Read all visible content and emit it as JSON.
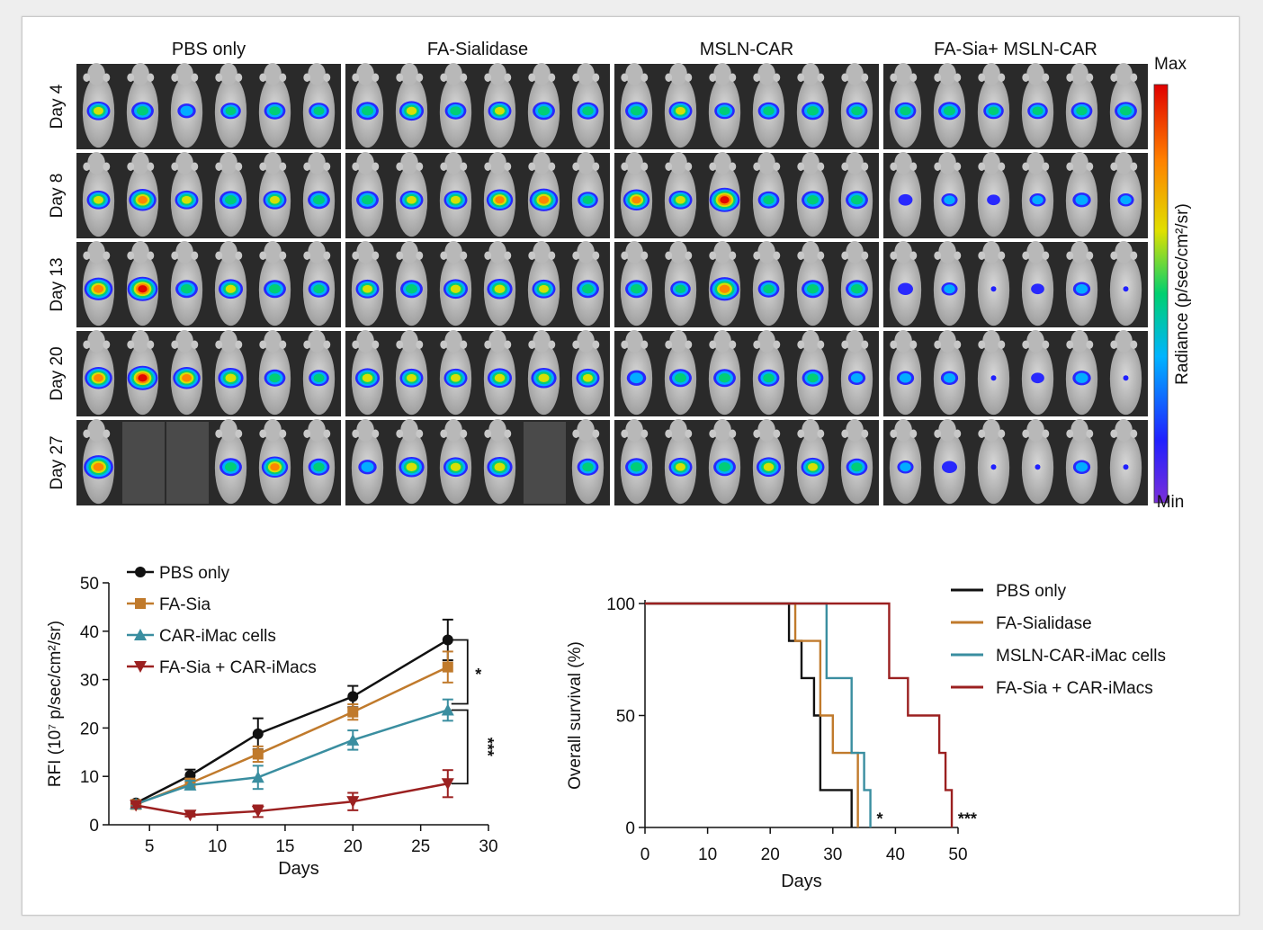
{
  "figure": {
    "imaging": {
      "groups": [
        "PBS only",
        "FA-Sialidase",
        "MSLN-CAR",
        "FA-Sia+ MSLN-CAR"
      ],
      "days": [
        "Day 4",
        "Day 8",
        "Day 13",
        "Day 20",
        "Day 27"
      ],
      "mice_per_panel": 6,
      "intensity": [
        [
          [
            0.6,
            0.55,
            0.35,
            0.45,
            0.5,
            0.45
          ],
          [
            0.55,
            0.65,
            0.5,
            0.6,
            0.55,
            0.5
          ],
          [
            0.55,
            0.6,
            0.45,
            0.5,
            0.55,
            0.5
          ],
          [
            0.5,
            0.55,
            0.45,
            0.45,
            0.5,
            0.55
          ]
        ],
        [
          [
            0.6,
            0.8,
            0.6,
            0.55,
            0.6,
            0.55
          ],
          [
            0.55,
            0.6,
            0.6,
            0.75,
            0.85,
            0.45
          ],
          [
            0.75,
            0.6,
            0.95,
            0.5,
            0.55,
            0.55
          ],
          [
            0.15,
            0.25,
            0.1,
            0.25,
            0.35,
            0.25
          ]
        ],
        [
          [
            0.85,
            0.95,
            0.55,
            0.65,
            0.55,
            0.5
          ],
          [
            0.6,
            0.55,
            0.65,
            0.7,
            0.6,
            0.55
          ],
          [
            0.55,
            0.45,
            0.9,
            0.5,
            0.55,
            0.55
          ],
          [
            0.2,
            0.25,
            0.08,
            0.1,
            0.3,
            0.05
          ]
        ],
        [
          [
            0.8,
            0.95,
            0.8,
            0.7,
            0.5,
            0.45
          ],
          [
            0.65,
            0.6,
            0.6,
            0.65,
            0.7,
            0.6
          ],
          [
            0.4,
            0.55,
            0.55,
            0.5,
            0.5,
            0.3
          ],
          [
            0.3,
            0.3,
            0.05,
            0.1,
            0.35,
            0.05
          ]
        ],
        [
          [
            0.9,
            null,
            null,
            0.55,
            0.75,
            0.5
          ],
          [
            0.35,
            0.7,
            0.65,
            0.7,
            null,
            0.5
          ],
          [
            0.55,
            0.6,
            0.55,
            0.65,
            0.6,
            0.5
          ],
          [
            0.25,
            0.2,
            0.05,
            0.05,
            0.3,
            0.05
          ]
        ]
      ],
      "colorbar": {
        "label": "Radiance (p/sec/cm²/sr)",
        "max_label": "Max",
        "min_label": "Min",
        "colors": [
          "#7b2fd9",
          "#2020ff",
          "#00b4ff",
          "#00d070",
          "#e0e000",
          "#ff8000",
          "#e00000"
        ]
      }
    },
    "rfi_chart": {
      "type": "line",
      "x": [
        4,
        8,
        13,
        20,
        27
      ],
      "series": [
        {
          "name": "PBS only",
          "values": [
            4.5,
            10.2,
            18.8,
            26.5,
            38.2
          ],
          "errors": [
            0.5,
            1.2,
            3.2,
            2.2,
            4.2
          ],
          "color": "#111111",
          "marker": "circle"
        },
        {
          "name": "FA-Sia",
          "values": [
            4.2,
            8.6,
            14.6,
            23.3,
            32.6
          ],
          "errors": [
            0.4,
            0.9,
            1.6,
            1.6,
            3.2
          ],
          "color": "#c07a2c",
          "marker": "square"
        },
        {
          "name": "CAR-iMac cells",
          "values": [
            4.3,
            8.2,
            9.8,
            17.5,
            23.7
          ],
          "errors": [
            0.5,
            0.9,
            2.4,
            2.0,
            2.2
          ],
          "color": "#3a8ea0",
          "marker": "triangle-up"
        },
        {
          "name": "FA-Sia + CAR-iMacs",
          "values": [
            4.0,
            2.0,
            2.8,
            4.8,
            8.5
          ],
          "errors": [
            0.4,
            0.3,
            1.2,
            1.8,
            2.8
          ],
          "color": "#9b2020",
          "marker": "triangle-down"
        }
      ],
      "xlabel": "Days",
      "ylabel": "RFI (10⁷ p/sec/cm²/sr)",
      "xlim": [
        2,
        30
      ],
      "ylim": [
        0,
        50
      ],
      "xticks": [
        "5",
        "10",
        "15",
        "20",
        "25",
        "30"
      ],
      "yticks": [
        "0",
        "10",
        "20",
        "30",
        "40",
        "50"
      ],
      "brackets": [
        {
          "from": 38.2,
          "to": 25.0,
          "label": "*"
        },
        {
          "from": 23.7,
          "to": 8.5,
          "label": "***"
        }
      ],
      "legend_position": "top-left",
      "grid": false
    },
    "survival_chart": {
      "type": "line",
      "series": [
        {
          "name": "PBS only",
          "color": "#111111",
          "steps": [
            [
              0,
              100
            ],
            [
              23,
              100
            ],
            [
              23,
              83.3
            ],
            [
              25,
              83.3
            ],
            [
              25,
              66.7
            ],
            [
              27,
              66.7
            ],
            [
              27,
              50
            ],
            [
              28,
              50
            ],
            [
              28,
              16.7
            ],
            [
              33,
              16.7
            ],
            [
              33,
              0
            ]
          ]
        },
        {
          "name": "FA-Sialidase",
          "color": "#c07a2c",
          "steps": [
            [
              0,
              100
            ],
            [
              24,
              100
            ],
            [
              24,
              83.3
            ],
            [
              28,
              83.3
            ],
            [
              28,
              50
            ],
            [
              30,
              50
            ],
            [
              30,
              33.3
            ],
            [
              34,
              33.3
            ],
            [
              34,
              0
            ]
          ]
        },
        {
          "name": "MSLN-CAR-iMac cells",
          "color": "#3a8ea0",
          "steps": [
            [
              0,
              100
            ],
            [
              29,
              100
            ],
            [
              29,
              66.7
            ],
            [
              33,
              66.7
            ],
            [
              33,
              33.3
            ],
            [
              35,
              33.3
            ],
            [
              35,
              16.7
            ],
            [
              36,
              16.7
            ],
            [
              36,
              0
            ]
          ]
        },
        {
          "name": "FA-Sia + CAR-iMacs",
          "color": "#9b2020",
          "steps": [
            [
              0,
              100
            ],
            [
              39,
              100
            ],
            [
              39,
              66.7
            ],
            [
              42,
              66.7
            ],
            [
              42,
              50
            ],
            [
              47,
              50
            ],
            [
              47,
              33.3
            ],
            [
              48,
              33.3
            ],
            [
              48,
              16.7
            ],
            [
              49,
              16.7
            ],
            [
              49,
              0
            ]
          ]
        }
      ],
      "xlabel": "Days",
      "ylabel": "Overall survival (%)",
      "xlim": [
        0,
        50
      ],
      "ylim": [
        0,
        100
      ],
      "xticks": [
        "0",
        "10",
        "20",
        "30",
        "40",
        "50"
      ],
      "yticks": [
        "0",
        "50",
        "100"
      ],
      "annotations": [
        {
          "x": 37.5,
          "y": 3,
          "label": "*"
        },
        {
          "x": 51.5,
          "y": 3,
          "label": "***"
        }
      ],
      "legend_position": "right",
      "grid": false
    }
  }
}
